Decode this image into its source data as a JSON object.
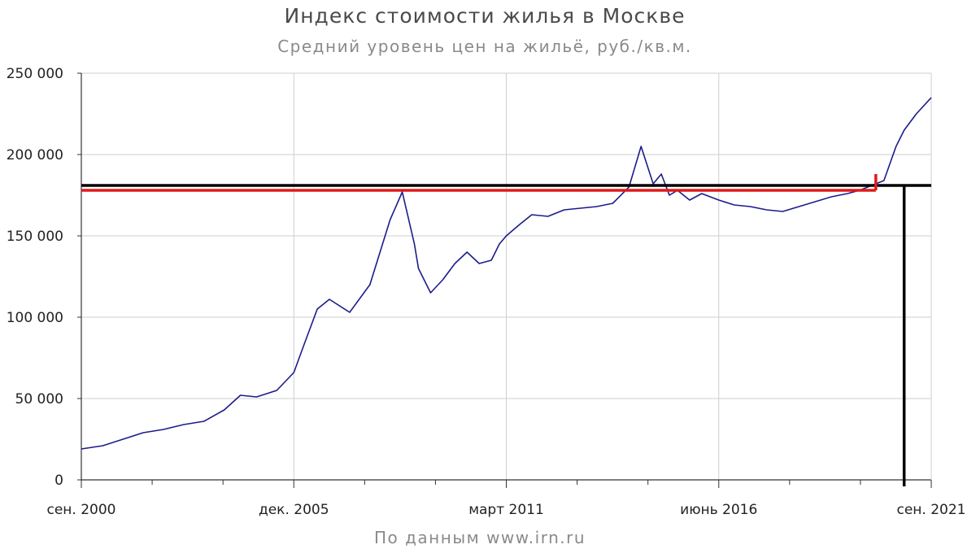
{
  "chart_data": {
    "type": "line",
    "title": "Индекс стоимости жилья в Москве",
    "subtitle": "Средний уровень цен на жильё, руб./кв.м.",
    "source": "По данным www.irn.ru",
    "ylim": [
      0,
      250000
    ],
    "y_ticks": [
      0,
      50000,
      100000,
      150000,
      200000,
      250000
    ],
    "y_tick_labels": [
      "0",
      "50 000",
      "100 000",
      "150 000",
      "200 000",
      "250 000"
    ],
    "x_tick_labels": [
      "сен. 2000",
      "дек. 2005",
      "март 2011",
      "июнь 2016",
      "сен. 2021"
    ],
    "x_ticks": [
      2000.67,
      2005.92,
      2011.17,
      2016.42,
      2021.67
    ],
    "xlim": [
      2000.67,
      2021.67
    ],
    "grid": true,
    "series": [
      {
        "color": "#1c1c8c",
        "x": [
          2000.67,
          2001.2,
          2001.7,
          2002.2,
          2002.7,
          2003.2,
          2003.7,
          2004.2,
          2004.6,
          2005.0,
          2005.5,
          2005.92,
          2006.2,
          2006.5,
          2006.8,
          2007.3,
          2007.8,
          2008.3,
          2008.6,
          2008.9,
          2009.0,
          2009.3,
          2009.6,
          2009.9,
          2010.2,
          2010.5,
          2010.8,
          2011.0,
          2011.17,
          2011.5,
          2011.8,
          2012.2,
          2012.6,
          2013.0,
          2013.4,
          2013.8,
          2014.2,
          2014.5,
          2014.8,
          2015.0,
          2015.2,
          2015.4,
          2015.7,
          2016.0,
          2016.42,
          2016.8,
          2017.2,
          2017.6,
          2018.0,
          2018.4,
          2018.8,
          2019.2,
          2019.6,
          2019.9,
          2020.2,
          2020.5,
          2020.8,
          2021.0,
          2021.3,
          2021.67
        ],
        "values": [
          19000,
          21000,
          25000,
          29000,
          31000,
          34000,
          36000,
          43000,
          52000,
          51000,
          55000,
          66000,
          85000,
          105000,
          111000,
          103000,
          120000,
          160000,
          177000,
          145000,
          130000,
          115000,
          123000,
          133000,
          140000,
          133000,
          135000,
          145000,
          150000,
          157000,
          163000,
          162000,
          166000,
          167000,
          168000,
          170000,
          180000,
          205000,
          182000,
          188000,
          175000,
          178000,
          172000,
          176000,
          172000,
          169000,
          168000,
          166000,
          165000,
          168000,
          171000,
          174000,
          176000,
          178000,
          181000,
          184000,
          205000,
          215000,
          225000,
          235000
        ]
      }
    ],
    "annotations": [
      {
        "type": "hline",
        "y": 178000,
        "x_from": 2000.67,
        "x_to": 2020.3,
        "color": "#e21a1a"
      },
      {
        "type": "hline",
        "y": 181000,
        "x_from": 2000.67,
        "x_to": 2021.67,
        "color": "#000000"
      },
      {
        "type": "vline",
        "x": 2021.0,
        "y_from": 181000,
        "y_to": 0,
        "color": "#000000"
      },
      {
        "type": "tick",
        "x": 2020.3,
        "y_from": 178000,
        "y_to": 188000,
        "color": "#e21a1a"
      }
    ]
  }
}
